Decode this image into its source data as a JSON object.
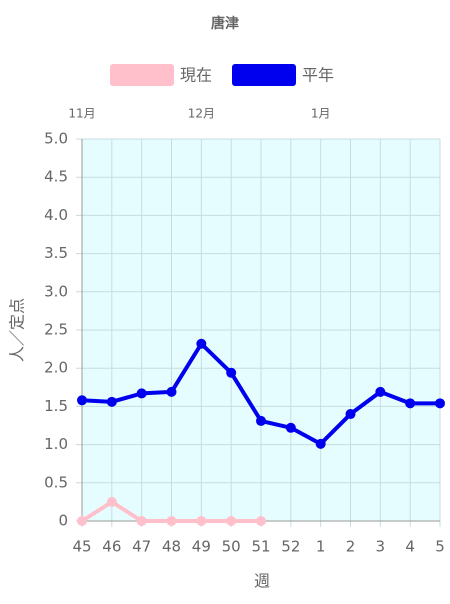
{
  "chart_data": {
    "type": "line",
    "title": "唐津",
    "categories": [
      "45",
      "46",
      "47",
      "48",
      "49",
      "50",
      "51",
      "52",
      "1",
      "2",
      "3",
      "4",
      "5"
    ],
    "month_labels": [
      "11月",
      null,
      null,
      null,
      "12月",
      null,
      null,
      null,
      "1月",
      null,
      null,
      null,
      null
    ],
    "series": [
      {
        "name": "現在",
        "color": "#ffc0cb",
        "values": [
          0,
          0.25,
          0,
          0,
          0,
          0,
          0,
          null,
          null,
          null,
          null,
          null,
          null
        ]
      },
      {
        "name": "平年",
        "color": "#0000ee",
        "values": [
          1.58,
          1.56,
          1.67,
          1.69,
          2.32,
          1.94,
          1.31,
          1.22,
          1.01,
          1.4,
          1.69,
          1.54,
          1.54
        ]
      }
    ],
    "y_label": "人／定点",
    "x_label": "週",
    "ylim": [
      0,
      5
    ],
    "yticks": [
      0,
      0.5,
      {
        "value": 1,
        "label": "1.0"
      },
      1.5,
      {
        "value": 2,
        "label": "2.0"
      },
      2.5,
      {
        "value": 3,
        "label": "3.0"
      },
      3.5,
      {
        "value": 4,
        "label": "4.0"
      },
      4.5,
      {
        "value": 5,
        "label": "5.0"
      }
    ],
    "grid": true,
    "legend": "top"
  }
}
